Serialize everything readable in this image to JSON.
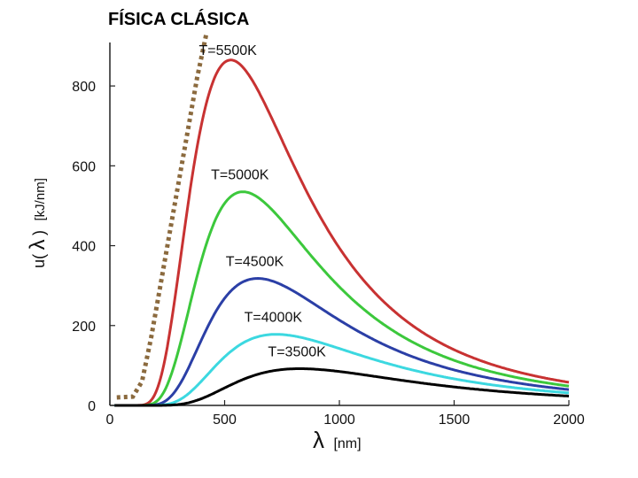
{
  "chart_data": {
    "type": "line",
    "title": "FÍSICA CLÁSICA",
    "xlabel_symbol": "λ",
    "xlabel_unit": "[nm]",
    "ylabel_prefix": "u(",
    "ylabel_symbol": "λ",
    "ylabel_suffix": ")",
    "ylabel_unit": "[kJ/nm]",
    "xlim": [
      0,
      2000
    ],
    "ylim": [
      0,
      900
    ],
    "x_ticks": [
      0,
      500,
      1000,
      1500,
      2000
    ],
    "y_ticks": [
      0,
      200,
      400,
      600,
      800
    ],
    "grid": false,
    "series": [
      {
        "name": "T=5500K",
        "temperature": 5500,
        "color": "#c83232",
        "peak": 865
      },
      {
        "name": "T=5000K",
        "temperature": 5000,
        "color": "#3cc83c",
        "peak": 535
      },
      {
        "name": "T=4500K",
        "temperature": 4500,
        "color": "#2b3fa6",
        "peak": 318
      },
      {
        "name": "T=4000K",
        "temperature": 4000,
        "color": "#3cd8e0",
        "peak": 178
      },
      {
        "name": "T=3500K",
        "temperature": 3500,
        "color": "#000000",
        "peak": 92
      }
    ],
    "classical": {
      "style": "dotted",
      "color": "#8b6a3e",
      "x": [
        30,
        100,
        140,
        180,
        220,
        260,
        300,
        340,
        380,
        420
      ],
      "y": [
        20,
        22,
        60,
        170,
        300,
        430,
        560,
        690,
        820,
        930
      ]
    }
  }
}
